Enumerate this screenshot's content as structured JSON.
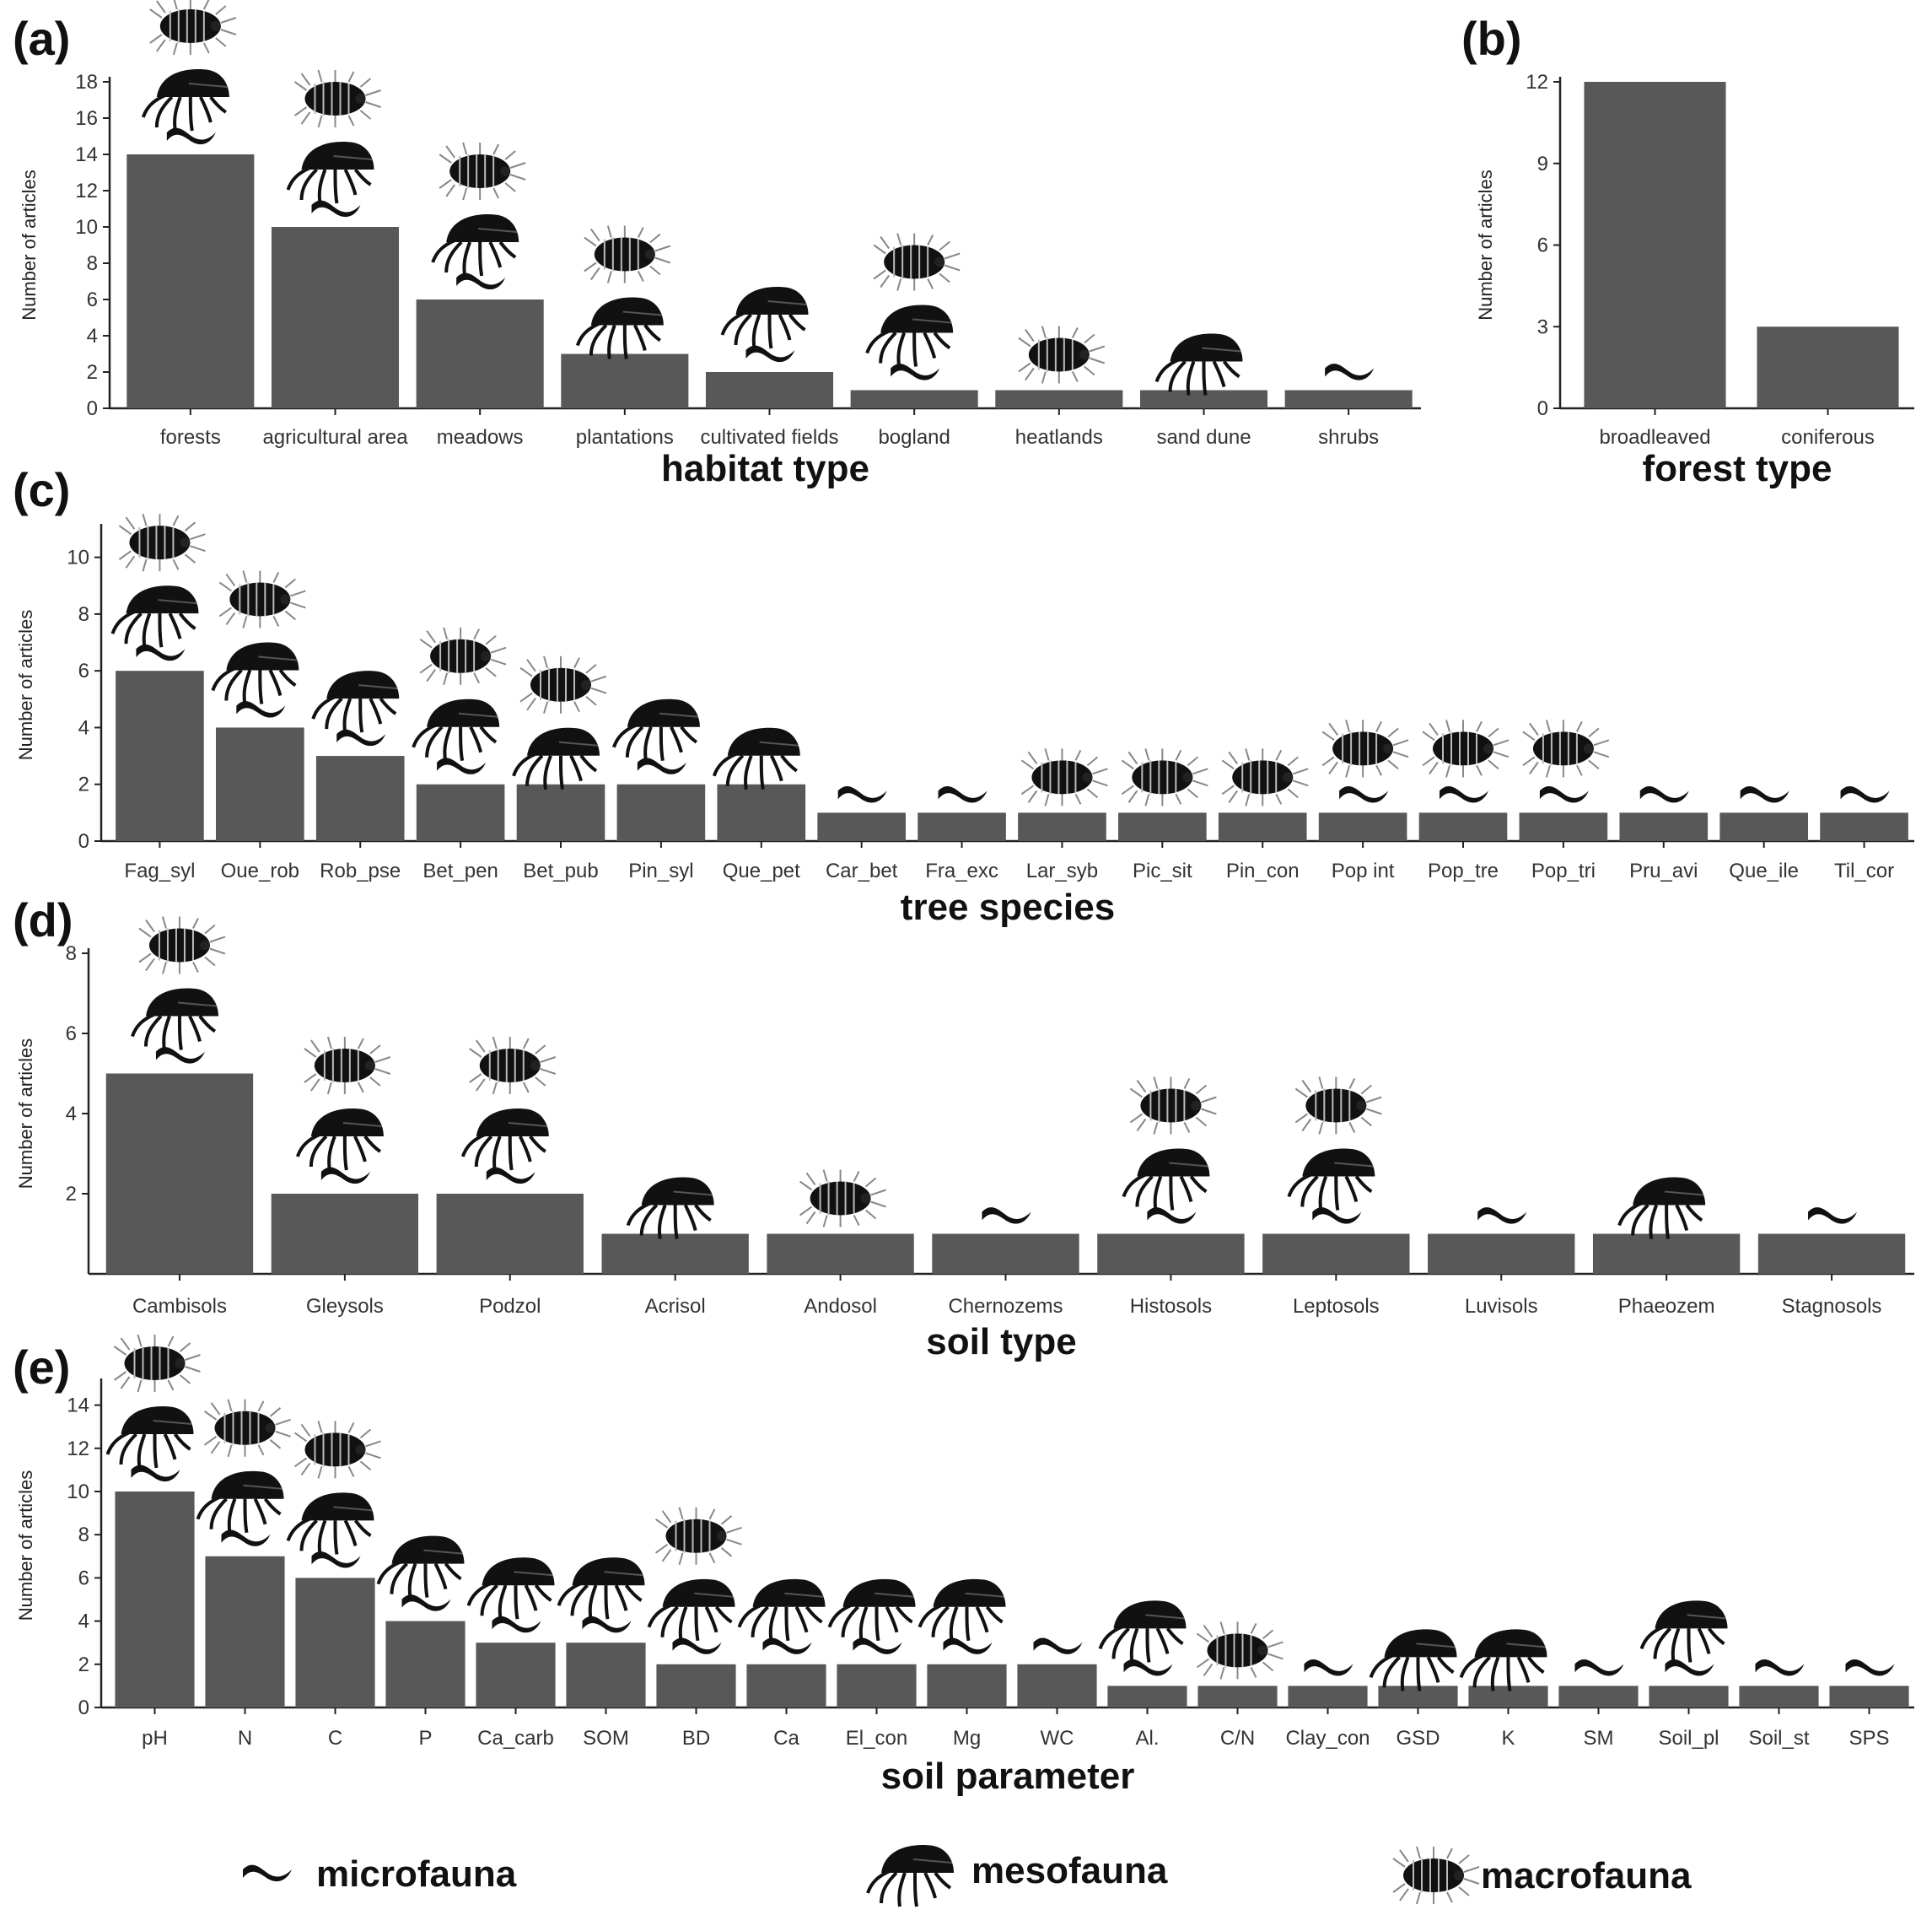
{
  "legend": {
    "micro": "microfauna",
    "meso": "mesofauna",
    "macro": "macrofauna"
  },
  "colors": {
    "bar": "#585858",
    "axis": "#222222",
    "icon": "#111111"
  },
  "chart_data": [
    {
      "type": "bar",
      "panel": "(a)",
      "xlabel": "habitat type",
      "ylabel": "Number of articles",
      "ylim": [
        0,
        18
      ],
      "yticks": [
        0,
        2,
        4,
        6,
        8,
        10,
        12,
        14,
        16,
        18
      ],
      "categories": [
        "forests",
        "agricultural area",
        "meadows",
        "plantations",
        "cultivated fields",
        "bogland",
        "heatlands",
        "sand dune",
        "shrubs"
      ],
      "values": [
        14,
        10,
        6,
        3,
        2,
        1,
        1,
        1,
        1
      ],
      "fauna": [
        [
          "micro",
          "meso",
          "macro"
        ],
        [
          "micro",
          "meso",
          "macro"
        ],
        [
          "micro",
          "meso",
          "macro"
        ],
        [
          "meso",
          "macro"
        ],
        [
          "micro",
          "meso"
        ],
        [
          "micro",
          "meso",
          "macro"
        ],
        [
          "macro"
        ],
        [
          "meso"
        ],
        [
          "micro"
        ]
      ]
    },
    {
      "type": "bar",
      "panel": "(b)",
      "xlabel": "forest type",
      "ylabel": "Number of articles",
      "ylim": [
        0,
        12
      ],
      "yticks": [
        0,
        3,
        6,
        9,
        12
      ],
      "categories": [
        "broadleaved",
        "coniferous"
      ],
      "values": [
        12,
        3
      ],
      "fauna": [
        [],
        []
      ]
    },
    {
      "type": "bar",
      "panel": "(c)",
      "xlabel": "tree species",
      "ylabel": "Number of articles",
      "ylim": [
        0,
        11
      ],
      "yticks": [
        0,
        2,
        4,
        6,
        8,
        10
      ],
      "categories": [
        "Fag_syl",
        "Oue_rob",
        "Rob_pse",
        "Bet_pen",
        "Bet_pub",
        "Pin_syl",
        "Que_pet",
        "Car_bet",
        "Fra_exc",
        "Lar_syb",
        "Pic_sit",
        "Pin_con",
        "Pop int",
        "Pop_tre",
        "Pop_tri",
        "Pru_avi",
        "Que_ile",
        "Til_cor"
      ],
      "values": [
        6,
        4,
        3,
        2,
        2,
        2,
        2,
        1,
        1,
        1,
        1,
        1,
        1,
        1,
        1,
        1,
        1,
        1
      ],
      "fauna": [
        [
          "micro",
          "meso",
          "macro"
        ],
        [
          "micro",
          "meso",
          "macro"
        ],
        [
          "micro",
          "meso"
        ],
        [
          "micro",
          "meso",
          "macro"
        ],
        [
          "meso",
          "macro"
        ],
        [
          "micro",
          "meso"
        ],
        [
          "meso"
        ],
        [
          "micro"
        ],
        [
          "micro"
        ],
        [
          "macro"
        ],
        [
          "macro"
        ],
        [
          "macro"
        ],
        [
          "micro",
          "macro"
        ],
        [
          "micro",
          "macro"
        ],
        [
          "micro",
          "macro"
        ],
        [
          "micro"
        ],
        [
          "micro"
        ],
        [
          "micro"
        ]
      ]
    },
    {
      "type": "bar",
      "panel": "(d)",
      "xlabel": "soil type",
      "ylabel": "Number of articles",
      "ylim": [
        0,
        8
      ],
      "yticks": [
        2,
        4,
        6,
        8
      ],
      "categories": [
        "Cambisols",
        "Gleysols",
        "Podzol",
        "Acrisol",
        "Andosol",
        "Chernozems",
        "Histosols",
        "Leptosols",
        "Luvisols",
        "Phaeozem",
        "Stagnosols"
      ],
      "values": [
        5,
        2,
        2,
        1,
        1,
        1,
        1,
        1,
        1,
        1,
        1
      ],
      "fauna": [
        [
          "micro",
          "meso",
          "macro"
        ],
        [
          "micro",
          "meso",
          "macro"
        ],
        [
          "micro",
          "meso",
          "macro"
        ],
        [
          "meso"
        ],
        [
          "macro"
        ],
        [
          "micro"
        ],
        [
          "micro",
          "meso",
          "macro"
        ],
        [
          "micro",
          "meso",
          "macro"
        ],
        [
          "micro"
        ],
        [
          "meso"
        ],
        [
          "micro"
        ]
      ]
    },
    {
      "type": "bar",
      "panel": "(e)",
      "xlabel": "soil parameter",
      "ylabel": "Number of articles",
      "ylim": [
        0,
        15
      ],
      "yticks": [
        0,
        2,
        4,
        6,
        8,
        10,
        12,
        14
      ],
      "categories": [
        "pH",
        "N",
        "C",
        "P",
        "Ca_carb",
        "SOM",
        "BD",
        "Ca",
        "El_con",
        "Mg",
        "WC",
        "Al.",
        "C/N",
        "Clay_con",
        "GSD",
        "K",
        "SM",
        "Soil_pl",
        "Soil_st",
        "SPS"
      ],
      "values": [
        10,
        7,
        6,
        4,
        3,
        3,
        2,
        2,
        2,
        2,
        2,
        1,
        1,
        1,
        1,
        1,
        1,
        1,
        1,
        1
      ],
      "fauna": [
        [
          "micro",
          "meso",
          "macro"
        ],
        [
          "micro",
          "meso",
          "macro"
        ],
        [
          "micro",
          "meso",
          "macro"
        ],
        [
          "micro",
          "meso"
        ],
        [
          "micro",
          "meso"
        ],
        [
          "micro",
          "meso"
        ],
        [
          "micro",
          "meso",
          "macro"
        ],
        [
          "micro",
          "meso"
        ],
        [
          "micro",
          "meso"
        ],
        [
          "micro",
          "meso"
        ],
        [
          "micro"
        ],
        [
          "micro",
          "meso"
        ],
        [
          "macro"
        ],
        [
          "micro"
        ],
        [
          "meso"
        ],
        [
          "meso"
        ],
        [
          "micro"
        ],
        [
          "micro",
          "meso"
        ],
        [
          "micro"
        ],
        [
          "micro"
        ]
      ]
    }
  ]
}
